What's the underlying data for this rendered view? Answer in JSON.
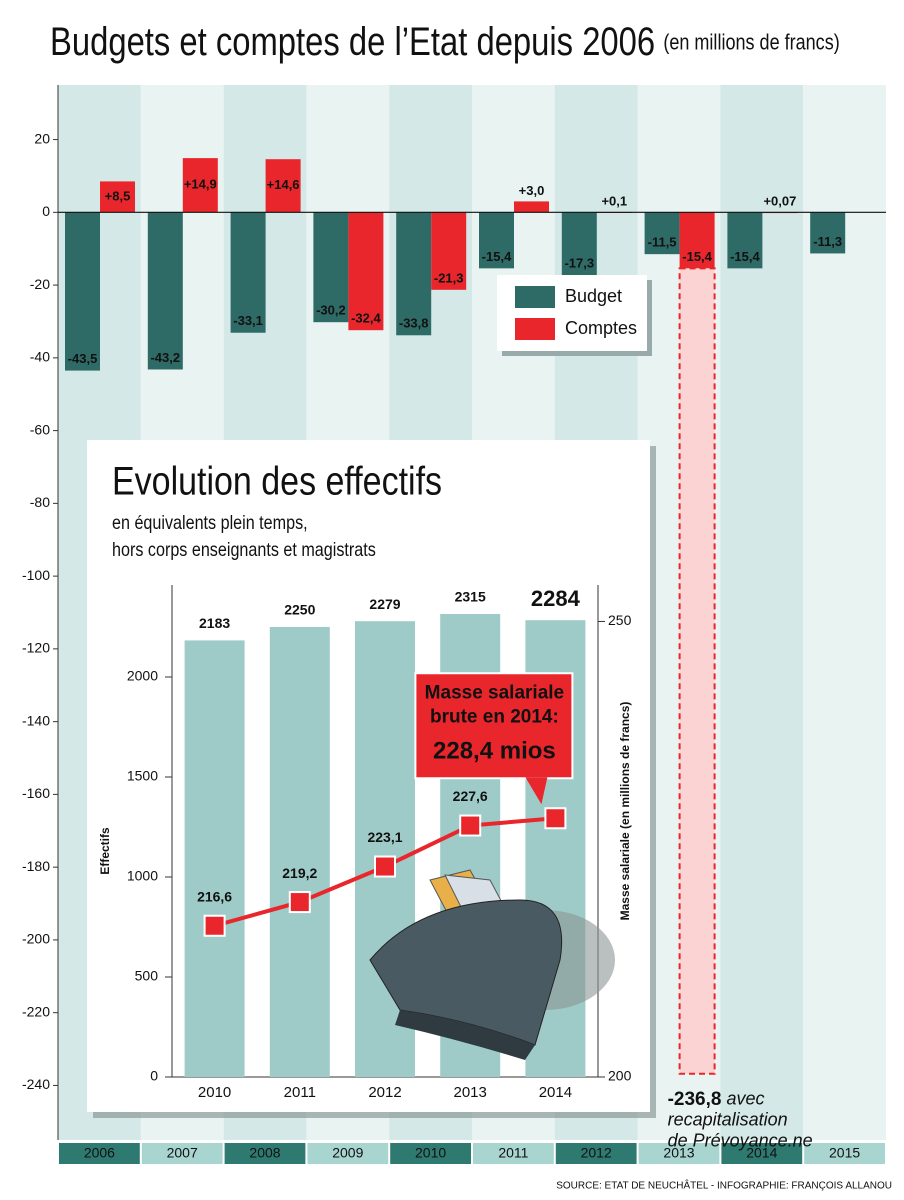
{
  "chart_data": [
    {
      "type": "bar",
      "title": "Budgets et comptes de l’Etat depuis 2006",
      "subtitle": "(en millions de francs)",
      "categories": [
        "2006",
        "2007",
        "2008",
        "2009",
        "2010",
        "2011",
        "2012",
        "2013",
        "2014",
        "2015"
      ],
      "series": [
        {
          "name": "Budget",
          "color": "#2e6b66",
          "values": [
            -43.5,
            -43.2,
            -33.1,
            -30.2,
            -33.8,
            -15.4,
            -17.3,
            -11.5,
            -15.4,
            -11.3
          ],
          "value_labels": [
            "-43,5",
            "-43,2",
            "-33,1",
            "-30,2",
            "-33,8",
            "-15,4",
            "-17,3",
            "-11,5",
            "-15,4",
            "-11,3"
          ]
        },
        {
          "name": "Comptes",
          "color": "#e8262b",
          "values": [
            8.5,
            14.9,
            14.6,
            -32.4,
            -21.3,
            3.0,
            0.1,
            -15.4,
            0.07,
            null
          ],
          "value_labels": [
            "+8,5",
            "+14,9",
            "+14,6",
            "-32,4",
            "-21,3",
            "+3,0",
            "+0,1",
            "-15,4",
            "+0,07",
            null
          ]
        }
      ],
      "ylim": [
        -255,
        35
      ],
      "yticks": [
        20,
        0,
        -20,
        -40,
        -60,
        -80,
        -100,
        -120,
        -140,
        -160,
        -180,
        -200,
        -220,
        -240
      ],
      "grid": false,
      "legend": "upper right",
      "annotations": [
        {
          "x": "2013",
          "value": -236.8,
          "value_label": "-236,8",
          "text": [
            "avec",
            "recapitalisation",
            "de Prévoyance.ne"
          ]
        }
      ]
    },
    {
      "type": "bar",
      "title": "Evolution des effectifs",
      "subtitle": [
        "en équivalents plein temps,",
        "hors corps enseignants et magistrats"
      ],
      "categories": [
        "2010",
        "2011",
        "2012",
        "2013",
        "2014"
      ],
      "series": [
        {
          "color": "#9ecbc8",
          "values": [
            2183,
            2250,
            2279,
            2315,
            2284
          ]
        },
        {
          "type": "line",
          "axis": "y2",
          "color": "#e8262b",
          "values": [
            216.6,
            219.2,
            223.1,
            227.6,
            228.4
          ],
          "value_labels": [
            "216,6",
            "219,2",
            "223,1",
            "227,6",
            "228,4 mios"
          ]
        }
      ],
      "ylabel": "Effectifs",
      "y2label": "Masse salariale (en millions de francs)",
      "ylim": [
        0,
        2460
      ],
      "yticks": [
        0,
        500,
        1000,
        1500,
        2000
      ],
      "y2lim": [
        200,
        254
      ],
      "y2ticks": [
        200,
        250
      ],
      "annotations": [
        {
          "x": "2014",
          "text": [
            "Masse salariale",
            "brute en 2014:"
          ]
        }
      ]
    }
  ],
  "source": "SOURCE: ETAT DE NEUCHÂTEL - INFOGRAPHIE: FRANÇOIS ALLANOU"
}
